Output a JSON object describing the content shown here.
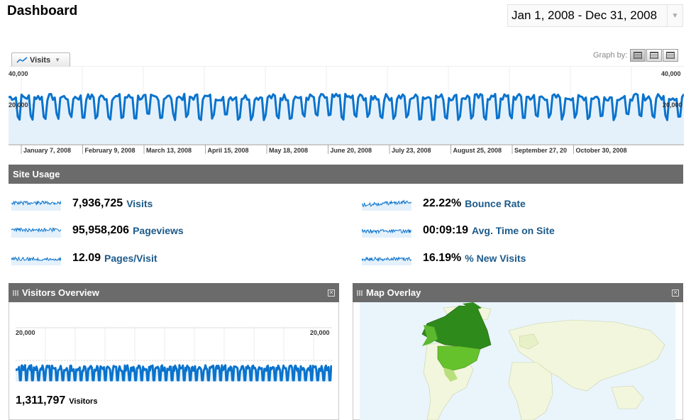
{
  "header": {
    "title": "Dashboard",
    "date_range": "Jan 1, 2008 - Dec 31, 2008"
  },
  "metric_selector": {
    "label": "Visits"
  },
  "graph_by": {
    "label": "Graph by:",
    "modes": [
      "day",
      "week",
      "month"
    ],
    "active": "day"
  },
  "chart_data": [
    {
      "type": "line",
      "y_axis_left": "40,000",
      "y_axis_right": "40,000",
      "y_mid_left": "20,000",
      "y_mid_right": "20,000",
      "ylim": [
        0,
        40000
      ],
      "x_labels": [
        "January 7, 2008",
        "February 9, 2008",
        "March 13, 2008",
        "April 15, 2008",
        "May 18, 2008",
        "June 20, 2008",
        "July 23, 2008",
        "August 25, 2008",
        "September 27, 20",
        "October 30, 2008"
      ],
      "series": [
        {
          "weekday_level": 24000,
          "weekend_level": 14000,
          "period_days": 7,
          "points": 366
        }
      ]
    },
    {
      "type": "line",
      "y_axis_left": "20,000",
      "y_axis_right": "20,000",
      "ylim": [
        0,
        20000
      ],
      "series": [
        {
          "weekday_level": 5000,
          "weekend_level": 3000,
          "period_days": 7,
          "points": 366
        }
      ]
    }
  ],
  "site_usage": {
    "title": "Site Usage",
    "left": [
      {
        "value": "7,936,725",
        "name": "Visits"
      },
      {
        "value": "95,958,206",
        "name": "Pageviews"
      },
      {
        "value": "12.09",
        "name": "Pages/Visit"
      }
    ],
    "right": [
      {
        "value": "22.22%",
        "name": "Bounce Rate"
      },
      {
        "value": "00:09:19",
        "name": "Avg. Time on Site"
      },
      {
        "value": "16.19%",
        "name": "% New Visits"
      }
    ]
  },
  "visitors_overview": {
    "title": "Visitors Overview",
    "total": "1,311,797",
    "total_label": "Visitors"
  },
  "map_overlay": {
    "title": "Map Overlay"
  },
  "colors": {
    "line": "#0a73cd",
    "fill": "#e4f1fb",
    "bar": "#6b6b6b",
    "link": "#1c5a8a"
  }
}
